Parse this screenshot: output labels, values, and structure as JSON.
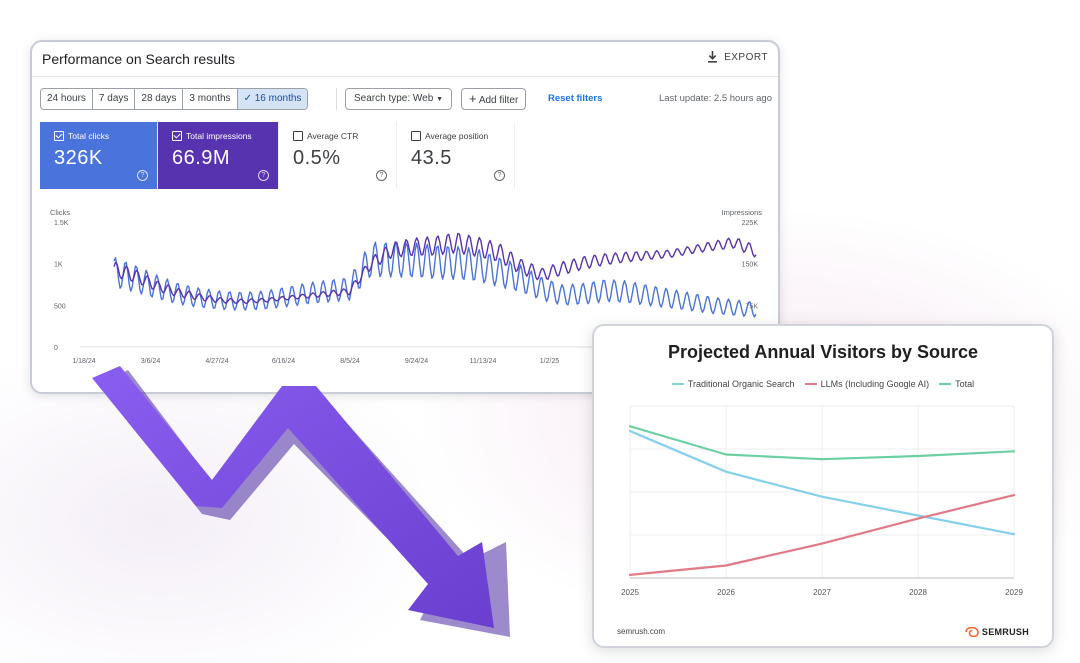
{
  "gsc": {
    "title": "Performance on Search results",
    "export_label": "EXPORT",
    "date_ranges": [
      "24 hours",
      "7 days",
      "28 days",
      "3 months",
      "16 months"
    ],
    "selected_range": "16 months",
    "search_type_label": "Search type: Web",
    "add_filter_label": "Add filter",
    "reset_filters_label": "Reset filters",
    "last_update": "Last update: 2.5 hours ago",
    "metrics": [
      {
        "label": "Total clicks",
        "value": "326K",
        "checked": true,
        "color": "#4a73db"
      },
      {
        "label": "Total impressions",
        "value": "66.9M",
        "checked": true,
        "color": "#5833b0"
      },
      {
        "label": "Average CTR",
        "value": "0.5%",
        "checked": false
      },
      {
        "label": "Average position",
        "value": "43.5",
        "checked": false
      }
    ]
  },
  "chart_data": [
    {
      "type": "line",
      "ylabel": "Clicks",
      "y2label": "Impressions",
      "y_ticks": [
        "1.5K",
        "1K",
        "500",
        "0"
      ],
      "y2_ticks": [
        "225K",
        "150K",
        "75K"
      ],
      "x_ticks": [
        "1/18/24",
        "3/6/24",
        "4/27/24",
        "6/16/24",
        "8/5/24",
        "9/24/24",
        "11/13/24",
        "1/2/25"
      ],
      "ylim": [
        0,
        1500
      ],
      "y2lim": [
        0,
        225000
      ],
      "series": [
        {
          "name": "Clicks",
          "color": "#4a73db",
          "trend": [
            900,
            820,
            720,
            640,
            590,
            560,
            550,
            560,
            600,
            640,
            670,
            700,
            1050,
            1050,
            1040,
            1020,
            1010,
            980,
            900,
            820,
            700,
            620,
            640,
            680,
            660,
            620,
            580,
            540,
            500,
            470,
            450
          ]
        },
        {
          "name": "Impressions",
          "color": "#5833b0",
          "trend": [
            140000,
            128000,
            110000,
            98000,
            90000,
            84000,
            82000,
            84000,
            88000,
            92000,
            96000,
            100000,
            150000,
            175000,
            180000,
            182000,
            188000,
            180000,
            170000,
            145000,
            130000,
            142000,
            152000,
            158000,
            162000,
            165000,
            168000,
            175000,
            182000,
            188000,
            172000
          ]
        }
      ]
    },
    {
      "type": "line",
      "title": "Projected Annual Visitors by Source",
      "x": [
        "2025",
        "2026",
        "2027",
        "2028",
        "2029"
      ],
      "series": [
        {
          "name": "Traditional Organic Search",
          "color": "#86d0ec",
          "values": [
            94,
            68,
            52,
            40,
            28
          ]
        },
        {
          "name": "LLMs (Including Google AI)",
          "color": "#e07a86",
          "values": [
            2,
            8,
            22,
            38,
            53
          ]
        },
        {
          "name": "Total",
          "color": "#6cd0a2",
          "values": [
            97,
            79,
            76,
            78,
            81
          ]
        }
      ],
      "ylim": [
        0,
        110
      ],
      "grid": true,
      "legend": "top"
    }
  ],
  "semrush": {
    "footer": "semrush.com",
    "brand": "SEMRUSH",
    "brand_color": "#ff642d"
  },
  "arrow": {
    "color": "#7b4fd6",
    "meaning": "declining trend"
  }
}
